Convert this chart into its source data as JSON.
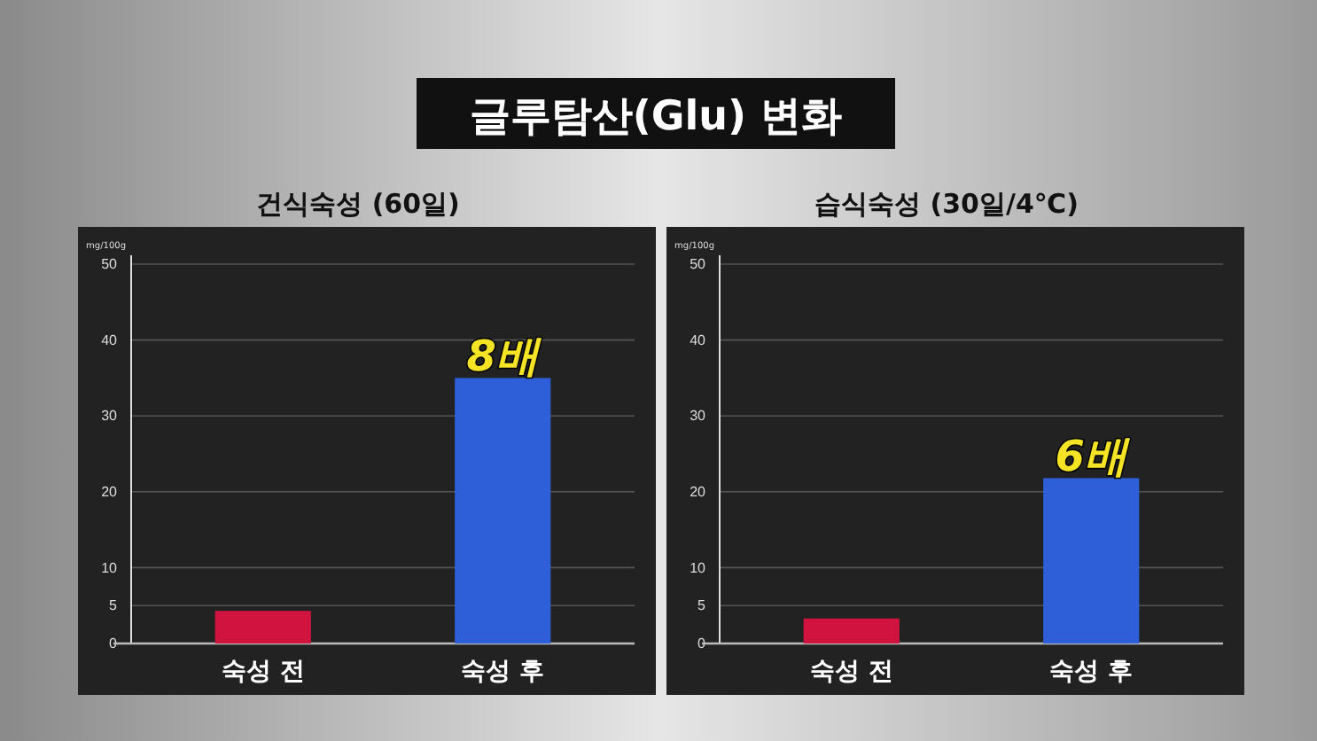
{
  "chart_data": [
    {
      "type": "bar",
      "title": "글루탐산(Glu) 변화",
      "subtitle": "건식숙성 (60일)",
      "ylabel": "mg/100g",
      "categories": [
        "숙성 전",
        "숙성 후"
      ],
      "values": [
        4.3,
        35
      ],
      "colors": [
        "#d0143f",
        "#2e5fd8"
      ],
      "ylim": [
        0,
        50
      ],
      "yticks": [
        0,
        5,
        10,
        20,
        30,
        40,
        50
      ],
      "grid": "y",
      "annotations": [
        {
          "text": "8배",
          "x": "숙성 후",
          "y": 35
        }
      ]
    },
    {
      "type": "bar",
      "title": "습식숙성 (30일/4℃)",
      "ylabel": "mg/100g",
      "categories": [
        "숙성 전",
        "숙성 후"
      ],
      "values": [
        3.3,
        21.8
      ],
      "colors": [
        "#d0143f",
        "#2e5fd8"
      ],
      "ylim": [
        0,
        50
      ],
      "yticks": [
        0,
        5,
        10,
        20,
        30,
        40,
        50
      ],
      "grid": "y",
      "annotations": [
        {
          "text": "6배",
          "x": "숙성 후",
          "y": 21.8
        }
      ]
    }
  ]
}
